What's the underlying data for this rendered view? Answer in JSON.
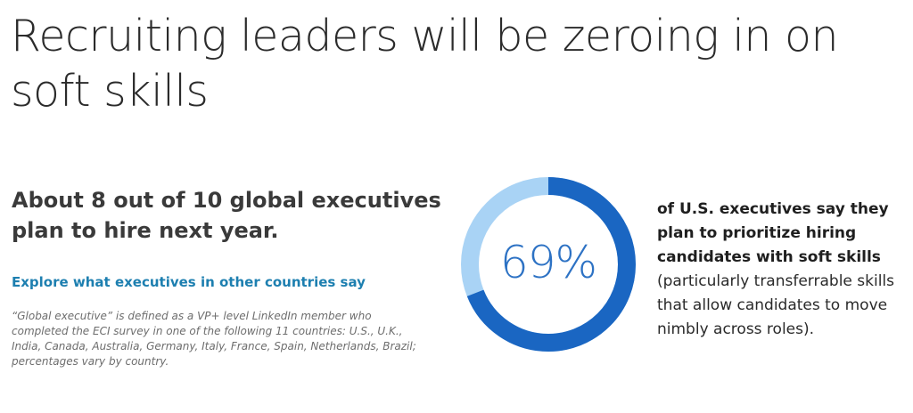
{
  "headline": "Recruiting leaders will be zeroing in on soft skills",
  "left": {
    "subhead": "About 8 out of 10 global executives plan to hire next year.",
    "link_label": "Explore what executives in other countries say",
    "footnote": "“Global executive” is defined as a VP+ level LinkedIn member who completed the ECI survey in one of the following 11 countries: U.S., U.K., India, Canada, Australia, Germany, Italy, France, Spain, Netherlands, Brazil; percentages vary by country."
  },
  "stat": {
    "value_label": "69%",
    "percent": 69,
    "colors": {
      "filled": "#1a66c2",
      "remaining": "#a9d3f5",
      "text": "#2d72c4",
      "link": "#1d7fb0"
    }
  },
  "right": {
    "bold_text": "of U.S. executives say they plan to prioritize hiring candidates with soft skills",
    "normal_text": "(particularly transferrable skills that allow candidates to move nimbly across roles)."
  }
}
